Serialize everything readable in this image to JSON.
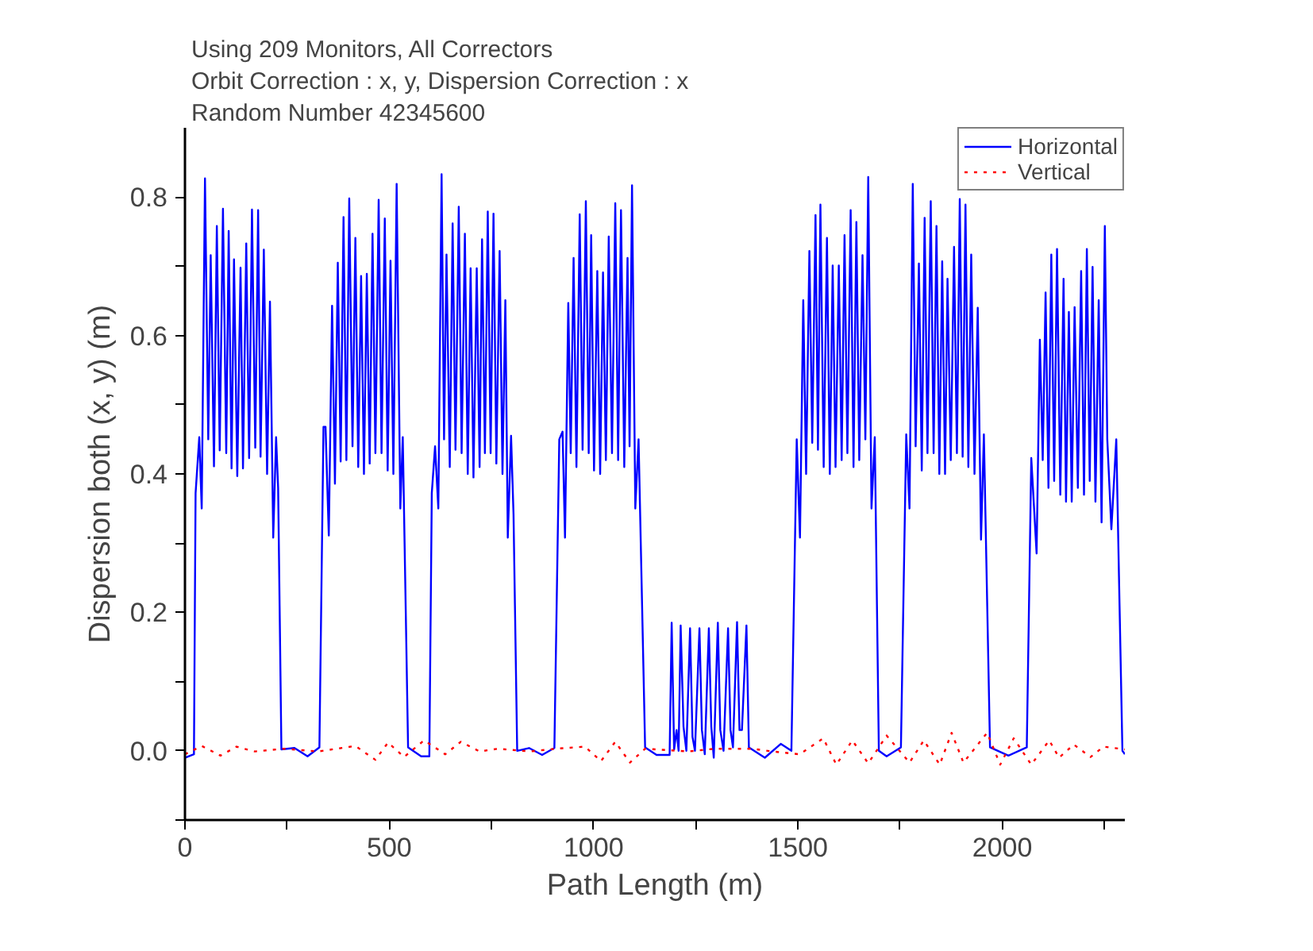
{
  "chart_data": {
    "type": "line",
    "title": "Using 209 Monitors, All Correctors",
    "subtitle": "Orbit Correction : x, y, Dispersion Correction : x",
    "annotations": [
      "Random Number 42345600"
    ],
    "xlabel": "Path Length (m)",
    "ylabel": "Dispersion both (x, y) (m)",
    "xlim": [
      0,
      2300
    ],
    "ylim": [
      -0.1,
      0.9
    ],
    "xticks": [
      0,
      {
        "value": 250,
        "label": null
      },
      500,
      {
        "value": 750,
        "label": null
      },
      1000,
      {
        "value": 1250,
        "label": null
      },
      1500,
      {
        "value": 1750,
        "label": null
      },
      2000,
      {
        "value": 2250,
        "label": null
      }
    ],
    "yticks": [
      {
        "value": -0.1,
        "label": null
      },
      {
        "value": 0,
        "label": "0.0"
      },
      {
        "value": 0.1,
        "label": null
      },
      {
        "value": 0.2,
        "label": "0.2"
      },
      {
        "value": 0.3,
        "label": null
      },
      {
        "value": 0.4,
        "label": "0.4"
      },
      {
        "value": 0.5,
        "label": null
      },
      {
        "value": 0.6,
        "label": "0.6"
      },
      {
        "value": 0.7,
        "label": null
      },
      {
        "value": 0.8,
        "label": "0.8"
      }
    ],
    "grid": false,
    "legend": "top right",
    "series": [
      {
        "name": "Horizontal",
        "color": "#0000ff",
        "line_style": "solid",
        "x": [
          0,
          22,
          26,
          35,
          41,
          49,
          57,
          63,
          71,
          78,
          85,
          93,
          101,
          107,
          114,
          120,
          128,
          136,
          142,
          150,
          157,
          164,
          172,
          179,
          185,
          193,
          201,
          208,
          216,
          223,
          228,
          236,
          268,
          300,
          329,
          339,
          344,
          352,
          360,
          367,
          374,
          381,
          388,
          395,
          402,
          410,
          417,
          424,
          431,
          438,
          445,
          452,
          459,
          466,
          474,
          481,
          489,
          496,
          503,
          510,
          518,
          527,
          533,
          546,
          578,
          598,
          604,
          612,
          620,
          628,
          634,
          640,
          648,
          655,
          662,
          670,
          677,
          685,
          692,
          699,
          706,
          714,
          721,
          727,
          734,
          741,
          748,
          755,
          762,
          770,
          777,
          784,
          790,
          798,
          804,
          813,
          842,
          874,
          904,
          916,
          924,
          930,
          938,
          944,
          951,
          958,
          966,
          973,
          981,
          988,
          994,
          1001,
          1009,
          1016,
          1023,
          1030,
          1037,
          1045,
          1053,
          1060,
          1067,
          1075,
          1083,
          1088,
          1094,
          1102,
          1110,
          1126,
          1154,
          1186,
          1191,
          1197,
          1203,
          1208,
          1213,
          1220,
          1227,
          1236,
          1242,
          1248,
          1259,
          1265,
          1272,
          1282,
          1288,
          1294,
          1304,
          1310,
          1318,
          1329,
          1335,
          1341,
          1351,
          1357,
          1363,
          1374,
          1380,
          1419,
          1458,
          1484,
          1497,
          1505,
          1513,
          1520,
          1528,
          1535,
          1543,
          1549,
          1555,
          1563,
          1571,
          1578,
          1585,
          1592,
          1600,
          1607,
          1614,
          1621,
          1629,
          1636,
          1643,
          1650,
          1658,
          1665,
          1672,
          1680,
          1688,
          1698,
          1717,
          1752,
          1765,
          1773,
          1781,
          1788,
          1796,
          1803,
          1810,
          1817,
          1825,
          1832,
          1839,
          1846,
          1853,
          1860,
          1866,
          1874,
          1882,
          1889,
          1896,
          1903,
          1910,
          1917,
          1924,
          1932,
          1940,
          1948,
          1955,
          1970,
          2015,
          2060,
          2071,
          2084,
          2092,
          2099,
          2106,
          2113,
          2120,
          2127,
          2134,
          2142,
          2150,
          2156,
          2163,
          2170,
          2177,
          2185,
          2193,
          2200,
          2207,
          2214,
          2221,
          2228,
          2236,
          2243,
          2251,
          2257,
          2267,
          2279,
          2294,
          2300
        ],
        "values": [
          -0.01,
          -0.005,
          0.372,
          0.453,
          0.35,
          0.827,
          0.45,
          0.716,
          0.411,
          0.758,
          0.434,
          0.783,
          0.43,
          0.751,
          0.408,
          0.71,
          0.397,
          0.698,
          0.408,
          0.733,
          0.423,
          0.782,
          0.438,
          0.781,
          0.425,
          0.724,
          0.4,
          0.649,
          0.308,
          0.453,
          0.38,
          0.002,
          0.004,
          -0.008,
          0.005,
          0.468,
          0.468,
          0.311,
          0.643,
          0.386,
          0.705,
          0.418,
          0.771,
          0.42,
          0.798,
          0.44,
          0.741,
          0.41,
          0.686,
          0.4,
          0.689,
          0.415,
          0.747,
          0.43,
          0.796,
          0.43,
          0.769,
          0.405,
          0.708,
          0.4,
          0.819,
          0.35,
          0.453,
          0.005,
          -0.008,
          -0.008,
          0.372,
          0.44,
          0.35,
          0.833,
          0.45,
          0.717,
          0.41,
          0.762,
          0.435,
          0.786,
          0.43,
          0.747,
          0.4,
          0.697,
          0.395,
          0.697,
          0.41,
          0.739,
          0.43,
          0.779,
          0.43,
          0.776,
          0.415,
          0.722,
          0.4,
          0.651,
          0.308,
          0.455,
          0.342,
          0.0,
          0.004,
          -0.006,
          0.004,
          0.45,
          0.461,
          0.308,
          0.647,
          0.43,
          0.712,
          0.41,
          0.775,
          0.435,
          0.794,
          0.43,
          0.745,
          0.405,
          0.693,
          0.4,
          0.691,
          0.42,
          0.743,
          0.43,
          0.791,
          0.42,
          0.781,
          0.41,
          0.712,
          0.44,
          0.817,
          0.35,
          0.45,
          0.005,
          -0.006,
          -0.006,
          0.185,
          0.002,
          0.03,
          0.0,
          0.181,
          0.035,
          0.0,
          0.177,
          0.02,
          0.0,
          0.177,
          0.03,
          -0.005,
          0.177,
          0.035,
          -0.01,
          0.185,
          0.03,
          0.0,
          0.177,
          0.03,
          0.005,
          0.186,
          0.03,
          0.03,
          0.181,
          0.005,
          -0.01,
          0.01,
          0.0,
          0.45,
          0.308,
          0.651,
          0.4,
          0.722,
          0.445,
          0.774,
          0.435,
          0.789,
          0.41,
          0.741,
          0.4,
          0.701,
          0.41,
          0.701,
          0.42,
          0.745,
          0.43,
          0.781,
          0.41,
          0.764,
          0.42,
          0.716,
          0.45,
          0.829,
          0.35,
          0.453,
          0.0,
          -0.008,
          0.005,
          0.457,
          0.35,
          0.819,
          0.44,
          0.704,
          0.405,
          0.77,
          0.43,
          0.794,
          0.43,
          0.758,
          0.4,
          0.707,
          0.4,
          0.682,
          0.42,
          0.728,
          0.43,
          0.797,
          0.425,
          0.789,
          0.41,
          0.717,
          0.4,
          0.64,
          0.305,
          0.457,
          0.005,
          -0.007,
          0.005,
          0.423,
          0.285,
          0.594,
          0.42,
          0.662,
          0.38,
          0.717,
          0.39,
          0.725,
          0.37,
          0.682,
          0.36,
          0.634,
          0.36,
          0.641,
          0.38,
          0.693,
          0.37,
          0.725,
          0.39,
          0.699,
          0.36,
          0.651,
          0.33,
          0.758,
          0.45,
          0.32,
          0.45,
          0.0,
          -0.005
        ]
      },
      {
        "name": "Vertical",
        "color": "#ff0000",
        "line_style": "dotted",
        "x": [
          0,
          41,
          87,
          126,
          171,
          242,
          326,
          417,
          466,
          497,
          536,
          585,
          637,
          675,
          721,
          766,
          844,
          908,
          979,
          1018,
          1053,
          1089,
          1126,
          1232,
          1297,
          1387,
          1439,
          1504,
          1562,
          1594,
          1633,
          1672,
          1717,
          1773,
          1808,
          1847,
          1876,
          1905,
          1963,
          1995,
          2028,
          2071,
          2115,
          2139,
          2175,
          2216,
          2248,
          2300
        ],
        "values": [
          -0.005,
          0.007,
          -0.007,
          0.006,
          -0.001,
          0.003,
          -0.001,
          0.007,
          -0.013,
          0.012,
          -0.009,
          0.015,
          -0.005,
          0.013,
          -0.001,
          0.003,
          -0.001,
          0.003,
          0.006,
          -0.015,
          0.013,
          -0.017,
          0.003,
          -0.001,
          0.003,
          0.003,
          -0.001,
          -0.005,
          0.018,
          -0.02,
          0.015,
          -0.018,
          0.022,
          -0.017,
          0.015,
          -0.02,
          0.026,
          -0.017,
          0.026,
          -0.02,
          0.018,
          -0.02,
          0.015,
          -0.01,
          0.009,
          -0.009,
          0.006,
          0.002
        ]
      }
    ]
  }
}
